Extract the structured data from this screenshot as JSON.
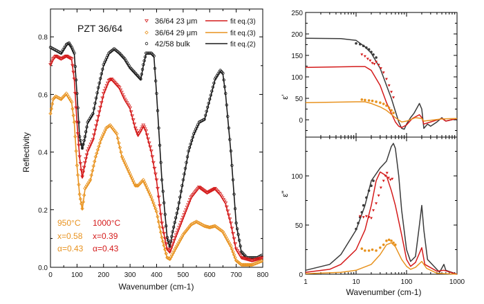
{
  "colors": {
    "bulk": "#1a1a1a",
    "bulk_right": "#3a3a3a",
    "f23": "#d41a1a",
    "f29": "#e8921e",
    "axis": "#000000"
  },
  "chart_data": [
    {
      "type": "line",
      "title": "PZT 36/64",
      "xlabel": "Wavenumber (cm-1)",
      "ylabel": "Reflectivity",
      "xlim": [
        0,
        800
      ],
      "ylim": [
        0,
        0.9
      ],
      "xticks": [
        "0",
        "100",
        "200",
        "300",
        "400",
        "500",
        "600",
        "700",
        "800"
      ],
      "yticks": [
        "0.0",
        "0.2",
        "0.4",
        "0.6",
        "0.8"
      ],
      "legend": {
        "placement": "top-right",
        "entries": [
          {
            "data": "36/64 23 μm",
            "fit": "fit eq.(3)",
            "marker": "triangle-down",
            "color_key": "f23"
          },
          {
            "data": "36/64 29 μm",
            "fit": "fit eq.(3)",
            "marker": "diamond",
            "color_key": "f29"
          },
          {
            "data": "42/58 bulk",
            "fit": "fit eq.(2)",
            "marker": "circle",
            "color_key": "bulk"
          }
        ]
      },
      "annotations": {
        "col1": [
          "950°C",
          "x=0.58",
          "α=0.43"
        ],
        "col2": [
          "1000°C",
          "x=0.39",
          "α=0.43"
        ]
      },
      "series": [
        {
          "key": "bulk",
          "x": [
            0,
            20,
            40,
            60,
            70,
            80,
            90,
            100,
            110,
            120,
            130,
            140,
            160,
            180,
            200,
            220,
            240,
            260,
            280,
            300,
            320,
            340,
            350,
            360,
            380,
            390,
            400,
            420,
            440,
            450,
            460,
            480,
            500,
            520,
            540,
            560,
            580,
            600,
            620,
            640,
            650,
            660,
            680,
            700,
            720,
            740,
            780,
            800
          ],
          "y": [
            0.76,
            0.75,
            0.74,
            0.77,
            0.775,
            0.76,
            0.74,
            0.6,
            0.45,
            0.41,
            0.45,
            0.5,
            0.53,
            0.62,
            0.7,
            0.74,
            0.755,
            0.74,
            0.72,
            0.69,
            0.67,
            0.65,
            0.7,
            0.74,
            0.74,
            0.73,
            0.6,
            0.3,
            0.1,
            0.07,
            0.12,
            0.2,
            0.3,
            0.4,
            0.46,
            0.5,
            0.51,
            0.58,
            0.65,
            0.68,
            0.67,
            0.6,
            0.4,
            0.15,
            0.05,
            0.03,
            0.03,
            0.04
          ]
        },
        {
          "key": "f23",
          "x": [
            0,
            10,
            20,
            40,
            60,
            80,
            90,
            100,
            110,
            120,
            130,
            140,
            160,
            180,
            200,
            220,
            230,
            260,
            280,
            300,
            320,
            330,
            340,
            350,
            360,
            380,
            400,
            420,
            440,
            450,
            470,
            500,
            530,
            560,
            590,
            620,
            640,
            660,
            680,
            700,
            720,
            760,
            800
          ],
          "y": [
            0.7,
            0.72,
            0.73,
            0.72,
            0.73,
            0.72,
            0.65,
            0.5,
            0.38,
            0.31,
            0.36,
            0.4,
            0.44,
            0.52,
            0.6,
            0.645,
            0.65,
            0.62,
            0.58,
            0.55,
            0.48,
            0.455,
            0.47,
            0.49,
            0.47,
            0.4,
            0.3,
            0.15,
            0.06,
            0.05,
            0.1,
            0.17,
            0.24,
            0.275,
            0.255,
            0.27,
            0.25,
            0.22,
            0.15,
            0.06,
            0.03,
            0.02,
            0.03
          ]
        },
        {
          "key": "f29",
          "x": [
            0,
            10,
            20,
            40,
            60,
            80,
            90,
            100,
            110,
            120,
            130,
            150,
            170,
            190,
            210,
            225,
            250,
            270,
            300,
            320,
            330,
            350,
            360,
            380,
            400,
            420,
            440,
            450,
            470,
            500,
            530,
            550,
            580,
            600,
            620,
            650,
            680,
            700,
            720,
            760,
            800
          ],
          "y": [
            0.53,
            0.58,
            0.59,
            0.58,
            0.6,
            0.57,
            0.5,
            0.35,
            0.25,
            0.2,
            0.27,
            0.3,
            0.38,
            0.44,
            0.48,
            0.49,
            0.46,
            0.38,
            0.32,
            0.28,
            0.28,
            0.3,
            0.28,
            0.24,
            0.19,
            0.1,
            0.03,
            0.025,
            0.06,
            0.11,
            0.145,
            0.155,
            0.14,
            0.135,
            0.14,
            0.12,
            0.07,
            0.02,
            0.005,
            0.005,
            0.02
          ]
        }
      ]
    },
    {
      "type": "line",
      "ylabel": "ε'",
      "xscale": "log",
      "xlim": [
        1,
        1000
      ],
      "ylim": [
        -25,
        250
      ],
      "yticks": [
        "0",
        "50",
        "100",
        "150",
        "200",
        "250"
      ],
      "series": [
        {
          "key": "bulk_right",
          "x": [
            1,
            5,
            10,
            15,
            20,
            30,
            40,
            50,
            60,
            70,
            80,
            90,
            100,
            120,
            140,
            180,
            200,
            220,
            260,
            300,
            400,
            500,
            600,
            1000
          ],
          "y": [
            190,
            189,
            185,
            170,
            155,
            120,
            80,
            50,
            20,
            -5,
            -20,
            -22,
            -10,
            5,
            15,
            38,
            25,
            -20,
            -10,
            -15,
            -5,
            5,
            -3,
            3
          ],
          "points_x": [
            10,
            12,
            14,
            16,
            18,
            20,
            22,
            25
          ],
          "points_y": [
            178,
            176,
            172,
            168,
            164,
            158,
            152,
            145
          ]
        },
        {
          "key": "f23",
          "x": [
            1,
            10,
            15,
            20,
            30,
            40,
            50,
            60,
            70,
            80,
            100,
            130,
            180,
            200,
            220,
            300,
            500,
            600,
            1000
          ],
          "y": [
            122,
            124,
            124,
            115,
            80,
            40,
            15,
            -5,
            -15,
            -18,
            -12,
            3,
            12,
            5,
            -10,
            -5,
            3,
            -3,
            3
          ],
          "points_x": [
            13,
            15,
            17,
            19,
            21,
            23,
            25,
            28,
            31,
            35,
            40,
            45,
            50,
            55
          ],
          "points_y": [
            152,
            148,
            142,
            138,
            132,
            130,
            135,
            128,
            120,
            110,
            95,
            80,
            65,
            52
          ]
        },
        {
          "key": "f29",
          "x": [
            1,
            10,
            15,
            20,
            30,
            40,
            60,
            80,
            100,
            150,
            200,
            220,
            500,
            1000
          ],
          "y": [
            40,
            42,
            42,
            38,
            30,
            22,
            5,
            -5,
            -3,
            5,
            3,
            -3,
            2,
            3
          ],
          "points_x": [
            13,
            15,
            18,
            21,
            25,
            30,
            35,
            40,
            45,
            50,
            55
          ],
          "points_y": [
            47,
            46,
            45,
            44,
            42,
            40,
            37,
            33,
            28,
            22,
            16
          ]
        }
      ]
    },
    {
      "type": "line",
      "xlabel": "Wavenumber (cm-1)",
      "ylabel": "ε\"",
      "xscale": "log",
      "xlim": [
        1,
        1000
      ],
      "ylim": [
        0,
        140
      ],
      "xticks": [
        "1",
        "10",
        "100",
        "1000"
      ],
      "yticks": [
        "0",
        "50",
        "100"
      ],
      "series": [
        {
          "key": "bulk_right",
          "x": [
            1,
            3,
            5,
            10,
            15,
            20,
            30,
            40,
            50,
            55,
            60,
            70,
            80,
            100,
            120,
            150,
            180,
            200,
            220,
            260,
            350,
            450,
            550,
            600,
            1000
          ],
          "y": [
            4,
            10,
            20,
            45,
            70,
            95,
            108,
            115,
            130,
            133,
            128,
            100,
            65,
            25,
            13,
            18,
            50,
            70,
            45,
            15,
            8,
            2,
            10,
            4,
            0
          ],
          "points_x": [
            10,
            11,
            12,
            13,
            14,
            16,
            18,
            20,
            22
          ],
          "points_y": [
            46,
            52,
            58,
            63,
            70,
            78,
            85,
            90,
            95
          ]
        },
        {
          "key": "f23",
          "x": [
            1,
            3,
            5,
            10,
            15,
            20,
            25,
            30,
            40,
            50,
            60,
            80,
            100,
            120,
            150,
            200,
            230,
            400,
            550,
            1000
          ],
          "y": [
            2,
            5,
            10,
            25,
            45,
            70,
            95,
            104,
            100,
            85,
            70,
            40,
            15,
            8,
            12,
            27,
            10,
            3,
            4,
            0
          ],
          "points_x": [
            12,
            14,
            16,
            18,
            20,
            22,
            25,
            28,
            31,
            35,
            38,
            41,
            44,
            48,
            52
          ],
          "points_y": [
            59,
            58,
            59,
            58,
            57,
            65,
            72,
            80,
            88,
            95,
            100,
            103,
            98,
            96,
            97
          ]
        },
        {
          "key": "f29",
          "x": [
            1,
            5,
            10,
            20,
            30,
            40,
            50,
            60,
            80,
            100,
            120,
            150,
            200,
            250,
            400,
            1000
          ],
          "y": [
            0.5,
            2,
            4,
            10,
            20,
            30,
            32,
            28,
            15,
            8,
            5,
            7,
            13,
            6,
            1,
            0
          ],
          "points_x": [
            13,
            15,
            18,
            21,
            25,
            30,
            35,
            40,
            45,
            50,
            55,
            60
          ],
          "points_y": [
            26,
            24,
            24,
            25,
            24,
            27,
            30,
            34,
            35,
            34,
            32,
            30
          ]
        }
      ]
    }
  ]
}
